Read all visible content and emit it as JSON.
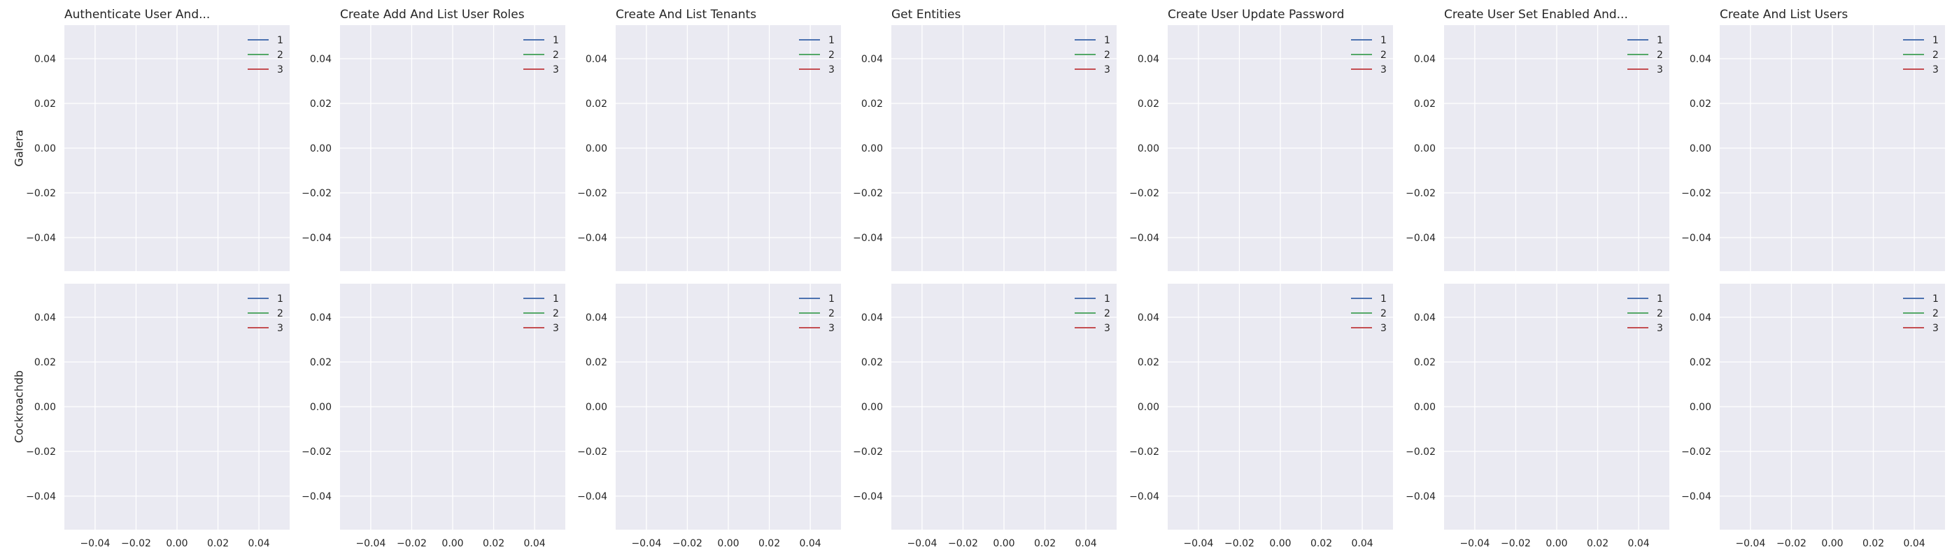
{
  "chart_data": {
    "type": "line",
    "row_labels": [
      "Galera",
      "Cockroachdb"
    ],
    "column_titles": [
      "Authenticate User And...",
      "Create Add And List User Roles",
      "Create And List Tenants",
      "Get Entities",
      "Create User Update Password",
      "Create User Set Enabled And...",
      "Create And List Users"
    ],
    "xlim": [
      -0.055,
      0.055
    ],
    "ylim": [
      -0.055,
      0.055
    ],
    "x_ticks": [
      "−0.04",
      "−0.02",
      "0.00",
      "0.02",
      "0.04"
    ],
    "x_tick_values": [
      -0.04,
      -0.02,
      0.0,
      0.02,
      0.04
    ],
    "y_ticks": [
      "0.04",
      "0.02",
      "0.00",
      "−0.02",
      "−0.04"
    ],
    "y_tick_values": [
      0.04,
      0.02,
      0.0,
      -0.02,
      -0.04
    ],
    "grid": true,
    "legend_placement": "top-right",
    "series": [
      {
        "name": "1",
        "color": "#4c72b0",
        "x": [],
        "y": []
      },
      {
        "name": "2",
        "color": "#55a868",
        "x": [],
        "y": []
      },
      {
        "name": "3",
        "color": "#c44e52",
        "x": [],
        "y": []
      }
    ],
    "colors": {
      "panel_background": "#eaeaf2",
      "grid": "#ffffff"
    }
  }
}
